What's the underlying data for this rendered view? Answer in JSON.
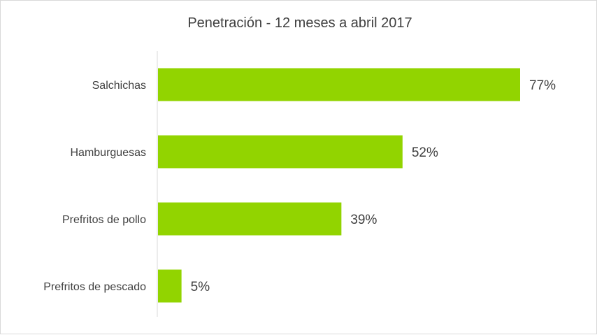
{
  "chart_data": {
    "type": "bar",
    "orientation": "horizontal",
    "title": "Penetración - 12 meses a abril 2017",
    "categories": [
      "Salchichas",
      "Hamburguesas",
      "Prefritos de pollo",
      "Prefritos de pescado"
    ],
    "values": [
      77,
      52,
      39,
      5
    ],
    "value_labels": [
      "77%",
      "52%",
      "39%",
      "5%"
    ],
    "xlim": [
      0,
      77
    ],
    "grid": false,
    "legend": "none",
    "bar_color": "#92d400"
  }
}
